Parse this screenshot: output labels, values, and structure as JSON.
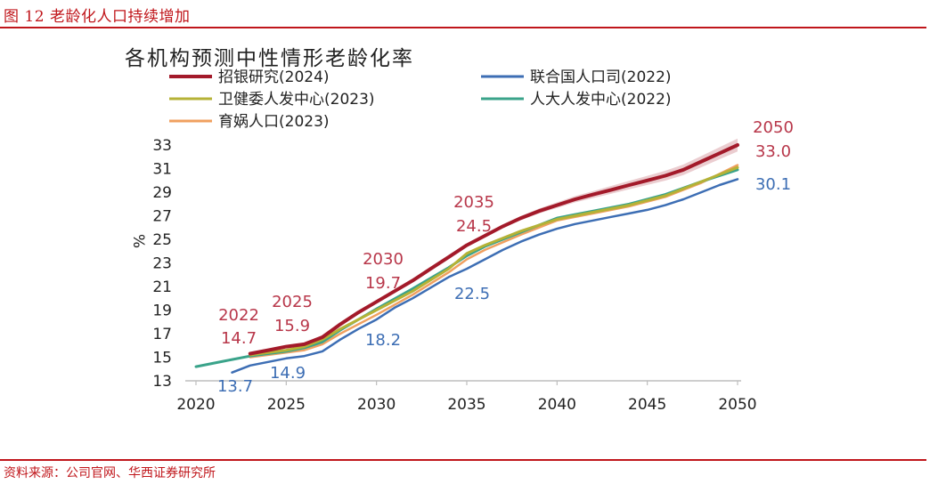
{
  "figure": {
    "title": "图 12 老龄化人口持续增加",
    "source": "资料来源：公司官网、华西证券研究所"
  },
  "chart_data": {
    "type": "line",
    "title": "各机构预测中性情形老龄化率",
    "ylabel": "%",
    "xlim": [
      2020,
      2050
    ],
    "ylim": [
      13,
      33
    ],
    "x_ticks": [
      2020,
      2025,
      2030,
      2035,
      2040,
      2045,
      2050
    ],
    "y_ticks": [
      13,
      15,
      17,
      19,
      21,
      23,
      25,
      27,
      29,
      31,
      33
    ],
    "legend_position": "top",
    "grid": false,
    "series": [
      {
        "name": "招银研究(2024)",
        "color": "#a31a2a",
        "width": 4,
        "band": true,
        "points": [
          [
            2023,
            15.3
          ],
          [
            2024,
            15.6
          ],
          [
            2025,
            15.9
          ],
          [
            2026,
            16.1
          ],
          [
            2027,
            16.7
          ],
          [
            2028,
            17.8
          ],
          [
            2029,
            18.8
          ],
          [
            2030,
            19.7
          ],
          [
            2031,
            20.6
          ],
          [
            2032,
            21.5
          ],
          [
            2033,
            22.5
          ],
          [
            2034,
            23.5
          ],
          [
            2035,
            24.5
          ],
          [
            2036,
            25.3
          ],
          [
            2037,
            26.1
          ],
          [
            2038,
            26.8
          ],
          [
            2039,
            27.4
          ],
          [
            2040,
            27.9
          ],
          [
            2041,
            28.4
          ],
          [
            2042,
            28.8
          ],
          [
            2043,
            29.2
          ],
          [
            2044,
            29.6
          ],
          [
            2045,
            30.0
          ],
          [
            2046,
            30.4
          ],
          [
            2047,
            30.9
          ],
          [
            2048,
            31.6
          ],
          [
            2049,
            32.3
          ],
          [
            2050,
            33.0
          ]
        ]
      },
      {
        "name": "联合国人口司(2022)",
        "color": "#3d6eb4",
        "width": 2.5,
        "points": [
          [
            2022,
            13.7
          ],
          [
            2023,
            14.3
          ],
          [
            2024,
            14.6
          ],
          [
            2025,
            14.9
          ],
          [
            2026,
            15.1
          ],
          [
            2027,
            15.5
          ],
          [
            2028,
            16.5
          ],
          [
            2029,
            17.4
          ],
          [
            2030,
            18.2
          ],
          [
            2031,
            19.2
          ],
          [
            2032,
            20.0
          ],
          [
            2033,
            20.9
          ],
          [
            2034,
            21.8
          ],
          [
            2035,
            22.5
          ],
          [
            2036,
            23.3
          ],
          [
            2037,
            24.1
          ],
          [
            2038,
            24.8
          ],
          [
            2039,
            25.4
          ],
          [
            2040,
            25.9
          ],
          [
            2041,
            26.3
          ],
          [
            2042,
            26.6
          ],
          [
            2043,
            26.9
          ],
          [
            2044,
            27.2
          ],
          [
            2045,
            27.5
          ],
          [
            2046,
            27.9
          ],
          [
            2047,
            28.4
          ],
          [
            2048,
            29.0
          ],
          [
            2049,
            29.6
          ],
          [
            2050,
            30.1
          ]
        ]
      },
      {
        "name": "卫健委人发中心(2023)",
        "color": "#b5b236",
        "width": 3,
        "points": [
          [
            2023,
            15.2
          ],
          [
            2025,
            15.6
          ],
          [
            2026,
            15.9
          ],
          [
            2027,
            16.5
          ],
          [
            2028,
            17.4
          ],
          [
            2030,
            19.0
          ],
          [
            2032,
            20.6
          ],
          [
            2034,
            22.5
          ],
          [
            2035,
            23.8
          ],
          [
            2036,
            24.5
          ],
          [
            2038,
            25.7
          ],
          [
            2040,
            26.7
          ],
          [
            2042,
            27.3
          ],
          [
            2044,
            27.9
          ],
          [
            2046,
            28.7
          ],
          [
            2048,
            29.9
          ],
          [
            2050,
            31.1
          ]
        ]
      },
      {
        "name": "人大人发中心(2022)",
        "color": "#3aa38a",
        "width": 3,
        "points": [
          [
            2020,
            14.2
          ],
          [
            2022,
            14.8
          ],
          [
            2023,
            15.1
          ],
          [
            2025,
            15.5
          ],
          [
            2026,
            15.8
          ],
          [
            2027,
            16.3
          ],
          [
            2028,
            17.3
          ],
          [
            2030,
            19.1
          ],
          [
            2032,
            20.8
          ],
          [
            2034,
            22.6
          ],
          [
            2035,
            23.6
          ],
          [
            2036,
            24.4
          ],
          [
            2038,
            25.6
          ],
          [
            2040,
            26.8
          ],
          [
            2042,
            27.4
          ],
          [
            2044,
            28.0
          ],
          [
            2046,
            28.8
          ],
          [
            2048,
            29.9
          ],
          [
            2050,
            30.9
          ]
        ]
      },
      {
        "name": "育娲人口(2023)",
        "color": "#f0a060",
        "width": 2.5,
        "points": [
          [
            2023,
            15.0
          ],
          [
            2025,
            15.4
          ],
          [
            2026,
            15.6
          ],
          [
            2027,
            16.1
          ],
          [
            2028,
            17.0
          ],
          [
            2030,
            18.6
          ],
          [
            2032,
            20.3
          ],
          [
            2034,
            22.2
          ],
          [
            2035,
            23.3
          ],
          [
            2036,
            24.1
          ],
          [
            2038,
            25.4
          ],
          [
            2040,
            26.6
          ],
          [
            2042,
            27.2
          ],
          [
            2044,
            27.8
          ],
          [
            2046,
            28.6
          ],
          [
            2048,
            29.8
          ],
          [
            2050,
            31.3
          ]
        ]
      }
    ],
    "annotations": [
      {
        "year_text": "2022",
        "value_text": "14.7",
        "color": "#b8374a"
      },
      {
        "year_text": "2025",
        "value_text": "15.9",
        "color": "#b8374a"
      },
      {
        "year_text": "2030",
        "value_text": "19.7",
        "color": "#b8374a"
      },
      {
        "year_text": "2035",
        "value_text": "24.5",
        "color": "#b8374a"
      },
      {
        "year_text": "2050",
        "value_text": "33.0",
        "color": "#b8374a"
      },
      {
        "value_text": "13.7",
        "color": "#3d6eb4"
      },
      {
        "value_text": "14.9",
        "color": "#3d6eb4"
      },
      {
        "value_text": "18.2",
        "color": "#3d6eb4"
      },
      {
        "value_text": "22.5",
        "color": "#3d6eb4"
      },
      {
        "value_text": "30.1",
        "color": "#3d6eb4"
      }
    ]
  }
}
